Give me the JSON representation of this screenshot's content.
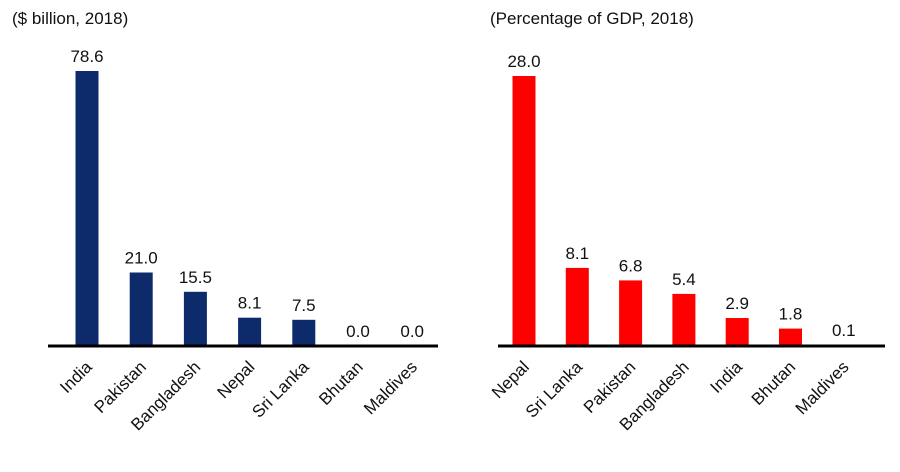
{
  "chart_data": [
    {
      "type": "bar",
      "title": "",
      "subtitle": "($ billion, 2018)",
      "xlabel": "",
      "ylabel": "",
      "categories": [
        "India",
        "Pakistan",
        "Bangladesh",
        "Nepal",
        "Sri Lanka",
        "Bhutan",
        "Maldives"
      ],
      "values": [
        78.6,
        21.0,
        15.5,
        8.1,
        7.5,
        0.0,
        0.0
      ],
      "value_labels": [
        "78.6",
        "21.0",
        "15.5",
        "8.1",
        "7.5",
        "0.0",
        "0.0"
      ],
      "ylim": [
        0,
        80
      ],
      "grid": false,
      "bar_color": "#0d2a6b"
    },
    {
      "type": "bar",
      "title": "",
      "subtitle": "(Percentage of GDP, 2018)",
      "xlabel": "",
      "ylabel": "",
      "categories": [
        "Nepal",
        "Sri Lanka",
        "Pakistan",
        "Bangladesh",
        "India",
        "Bhutan",
        "Maldives"
      ],
      "values": [
        28.0,
        8.1,
        6.8,
        5.4,
        2.9,
        1.8,
        0.1
      ],
      "value_labels": [
        "28.0",
        "8.1",
        "6.8",
        "5.4",
        "2.9",
        "1.8",
        "0.1"
      ],
      "ylim": [
        0,
        28.5
      ],
      "grid": false,
      "bar_color": "#ff0000"
    }
  ]
}
